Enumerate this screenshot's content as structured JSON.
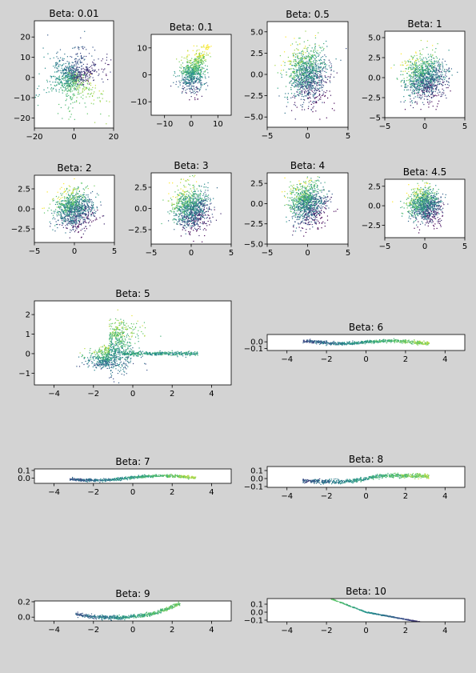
{
  "figure": {
    "background": "#d3d3d3",
    "colormap": "viridis",
    "colormap_stops": [
      "#440154",
      "#3b528b",
      "#21918c",
      "#5ec962",
      "#fde725"
    ]
  },
  "chart_data": [
    {
      "type": "scatter",
      "title": "Beta: 0.01",
      "xlim": [
        -20,
        20
      ],
      "ylim": [
        -25,
        28
      ],
      "xticks": [
        -20,
        0,
        20
      ],
      "xtick_labels": [
        "−20",
        "0",
        "20"
      ],
      "yticks": [
        -20,
        -10,
        0,
        10,
        20
      ],
      "ytick_labels": [
        "−20",
        "−10",
        "0",
        "10",
        "20"
      ],
      "shape": "star",
      "spread": [
        6,
        7
      ],
      "n_points": 900
    },
    {
      "type": "scatter",
      "title": "Beta: 0.1",
      "xlim": [
        -15,
        15
      ],
      "ylim": [
        -15,
        15
      ],
      "xticks": [
        -10,
        0,
        10
      ],
      "xtick_labels": [
        "−10",
        "0",
        "10"
      ],
      "yticks": [
        -10,
        0,
        10
      ],
      "ytick_labels": [
        "−10",
        "0",
        "10"
      ],
      "shape": "narrow",
      "spread": [
        2.5,
        3.5
      ],
      "n_points": 700
    },
    {
      "type": "scatter",
      "title": "Beta: 0.5",
      "xlim": [
        -5,
        5
      ],
      "ylim": [
        -6.2,
        6.2
      ],
      "xticks": [
        -5,
        0,
        5
      ],
      "xtick_labels": [
        "−5",
        "0",
        "5"
      ],
      "yticks": [
        -5.0,
        -2.5,
        0.0,
        2.5,
        5.0
      ],
      "ytick_labels": [
        "−5.0",
        "−2.5",
        "0.0",
        "2.5",
        "5.0"
      ],
      "shape": "blob",
      "spread": [
        1.3,
        1.7
      ],
      "n_points": 1100
    },
    {
      "type": "scatter",
      "title": "Beta: 1",
      "xlim": [
        -5,
        5
      ],
      "ylim": [
        -5,
        5.8
      ],
      "xticks": [
        -5,
        0,
        5
      ],
      "xtick_labels": [
        "−5",
        "0",
        "5"
      ],
      "yticks": [
        -5,
        -2.5,
        0,
        2.5,
        5
      ],
      "ytick_labels": [
        "−5",
        "−2.5",
        "0.0",
        "2.5",
        "5.0"
      ],
      "shape": "blob",
      "spread": [
        1.3,
        1.4
      ],
      "n_points": 1100
    },
    {
      "type": "scatter",
      "title": "Beta: 2",
      "xlim": [
        -5,
        5
      ],
      "ylim": [
        -4.2,
        4.2
      ],
      "xticks": [
        -5,
        0,
        5
      ],
      "xtick_labels": [
        "−5",
        "0",
        "5"
      ],
      "yticks": [
        -2.5,
        0,
        2.5
      ],
      "ytick_labels": [
        "−2.5",
        "0.0",
        "2.5"
      ],
      "shape": "blob",
      "spread": [
        1.2,
        1.2
      ],
      "n_points": 1000
    },
    {
      "type": "scatter",
      "title": "Beta: 3",
      "xlim": [
        -5,
        5
      ],
      "ylim": [
        -4.2,
        4.2
      ],
      "xticks": [
        -5,
        0,
        5
      ],
      "xtick_labels": [
        "−5",
        "0",
        "5"
      ],
      "yticks": [
        -2.5,
        0,
        2.5
      ],
      "ytick_labels": [
        "−2.5",
        "0.0",
        "2.5"
      ],
      "shape": "blob",
      "spread": [
        1.1,
        1.2
      ],
      "n_points": 1000
    },
    {
      "type": "scatter",
      "title": "Beta: 4",
      "xlim": [
        -5,
        5
      ],
      "ylim": [
        -5,
        3.8
      ],
      "xticks": [
        -5,
        0,
        5
      ],
      "xtick_labels": [
        "−5",
        "0",
        "5"
      ],
      "yticks": [
        -5,
        -2.5,
        0,
        2.5
      ],
      "ytick_labels": [
        "−5.0",
        "−2.5",
        "0.0",
        "2.5"
      ],
      "shape": "blob",
      "spread": [
        1.1,
        1.3
      ],
      "n_points": 1000
    },
    {
      "type": "scatter",
      "title": "Beta: 4.5",
      "xlim": [
        -5,
        5
      ],
      "ylim": [
        -4.1,
        3.4
      ],
      "xticks": [
        -5,
        0,
        5
      ],
      "xtick_labels": [
        "−5",
        "0",
        "5"
      ],
      "yticks": [
        -2.5,
        0,
        2.5
      ],
      "ytick_labels": [
        "−2.5",
        "0.0",
        "2.5"
      ],
      "shape": "blob",
      "spread": [
        1.0,
        1.1
      ],
      "n_points": 1000
    },
    {
      "type": "scatter",
      "title": "Beta: 5",
      "xlim": [
        -5,
        5
      ],
      "ylim": [
        -1.6,
        2.7
      ],
      "xticks": [
        -4,
        -2,
        0,
        2,
        4
      ],
      "xtick_labels": [
        "−4",
        "−2",
        "0",
        "2",
        "4"
      ],
      "yticks": [
        -1,
        0,
        1,
        2
      ],
      "ytick_labels": [
        "−1",
        "0",
        "1",
        "2"
      ],
      "shape": "fan",
      "n_points": 1300
    },
    {
      "type": "scatter",
      "title": "Beta: 6",
      "xlim": [
        -5,
        5
      ],
      "ylim": [
        -0.13,
        0.11
      ],
      "xticks": [
        -4,
        -2,
        0,
        2,
        4
      ],
      "xtick_labels": [
        "−4",
        "−2",
        "0",
        "2",
        "4"
      ],
      "yticks": [
        -0.1,
        0.0
      ],
      "ytick_labels": [
        "−0.1",
        "0.0"
      ],
      "shape": "band",
      "curve": "wave",
      "n_points": 700
    },
    {
      "type": "scatter",
      "title": "Beta: 7",
      "xlim": [
        -5,
        5
      ],
      "ylim": [
        -0.07,
        0.12
      ],
      "xticks": [
        -4,
        -2,
        0,
        2,
        4
      ],
      "xtick_labels": [
        "−4",
        "−2",
        "0",
        "2",
        "4"
      ],
      "yticks": [
        0.0,
        0.1
      ],
      "ytick_labels": [
        "0.0",
        "0.1"
      ],
      "shape": "band",
      "curve": "wave2",
      "n_points": 700
    },
    {
      "type": "scatter",
      "title": "Beta: 8",
      "xlim": [
        -5,
        5
      ],
      "ylim": [
        -0.11,
        0.15
      ],
      "xticks": [
        -4,
        -2,
        0,
        2,
        4
      ],
      "xtick_labels": [
        "−4",
        "−2",
        "0",
        "2",
        "4"
      ],
      "yticks": [
        -0.1,
        0.0,
        0.1
      ],
      "ytick_labels": [
        "−0.1",
        "0.0",
        "0.1"
      ],
      "shape": "band",
      "curve": "s",
      "n_points": 700
    },
    {
      "type": "scatter",
      "title": "Beta: 9",
      "xlim": [
        -5,
        5
      ],
      "ylim": [
        -0.05,
        0.21
      ],
      "xticks": [
        -4,
        -2,
        0,
        2,
        4
      ],
      "xtick_labels": [
        "−4",
        "−2",
        "0",
        "2",
        "4"
      ],
      "yticks": [
        0.0,
        0.2
      ],
      "ytick_labels": [
        "0.0",
        "0.2"
      ],
      "shape": "band",
      "curve": "u",
      "n_points": 600
    },
    {
      "type": "scatter",
      "title": "Beta: 10",
      "xlim": [
        -5,
        5
      ],
      "ylim": [
        -0.12,
        0.17
      ],
      "xticks": [
        -4,
        -2,
        0,
        2,
        4
      ],
      "xtick_labels": [
        "−4",
        "−2",
        "0",
        "2",
        "4"
      ],
      "yticks": [
        -0.1,
        0.0,
        0.1
      ],
      "ytick_labels": [
        "−0.1",
        "0.0",
        "0.1"
      ],
      "shape": "band",
      "curve": "line",
      "n_points": 500
    }
  ]
}
